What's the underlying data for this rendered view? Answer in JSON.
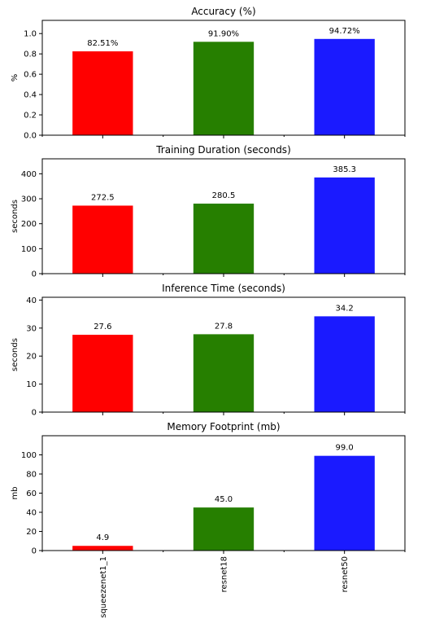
{
  "chart_data": [
    {
      "type": "bar",
      "title": "Accuracy (%)",
      "ylabel": "%",
      "categories": [
        "squeezenet1_1",
        "resnet18",
        "resnet50"
      ],
      "values": [
        0.8251,
        0.919,
        0.9472
      ],
      "data_labels": [
        "82.51%",
        "91.90%",
        "94.72%"
      ],
      "ylim": [
        0,
        1.13
      ],
      "yticks": [
        0.0,
        0.2,
        0.4,
        0.6,
        0.8,
        1.0
      ],
      "ytick_labels": [
        "0.0",
        "0.2",
        "0.4",
        "0.6",
        "0.8",
        "1.0"
      ],
      "colors": [
        "#ff0000",
        "#267f00",
        "#1a1aff"
      ]
    },
    {
      "type": "bar",
      "title": "Training Duration (seconds)",
      "ylabel": "seconds",
      "categories": [
        "squeezenet1_1",
        "resnet18",
        "resnet50"
      ],
      "values": [
        272.5,
        280.5,
        385.3
      ],
      "data_labels": [
        "272.5",
        "280.5",
        "385.3"
      ],
      "ylim": [
        0,
        460
      ],
      "yticks": [
        0,
        100,
        200,
        300,
        400
      ],
      "ytick_labels": [
        "0",
        "100",
        "200",
        "300",
        "400"
      ],
      "colors": [
        "#ff0000",
        "#267f00",
        "#1a1aff"
      ]
    },
    {
      "type": "bar",
      "title": "Inference Time (seconds)",
      "ylabel": "seconds",
      "categories": [
        "squeezenet1_1",
        "resnet18",
        "resnet50"
      ],
      "values": [
        27.6,
        27.8,
        34.2
      ],
      "data_labels": [
        "27.6",
        "27.8",
        "34.2"
      ],
      "ylim": [
        0,
        41
      ],
      "yticks": [
        0,
        10,
        20,
        30,
        40
      ],
      "ytick_labels": [
        "0",
        "10",
        "20",
        "30",
        "40"
      ],
      "colors": [
        "#ff0000",
        "#267f00",
        "#1a1aff"
      ]
    },
    {
      "type": "bar",
      "title": "Memory Footprint (mb)",
      "ylabel": "mb",
      "categories": [
        "squeezenet1_1",
        "resnet18",
        "resnet50"
      ],
      "values": [
        4.9,
        45.0,
        99.0
      ],
      "data_labels": [
        "4.9",
        "45.0",
        "99.0"
      ],
      "ylim": [
        0,
        120
      ],
      "yticks": [
        0,
        20,
        40,
        60,
        80,
        100
      ],
      "ytick_labels": [
        "0",
        "20",
        "40",
        "60",
        "80",
        "100"
      ],
      "colors": [
        "#ff0000",
        "#267f00",
        "#1a1aff"
      ]
    }
  ]
}
